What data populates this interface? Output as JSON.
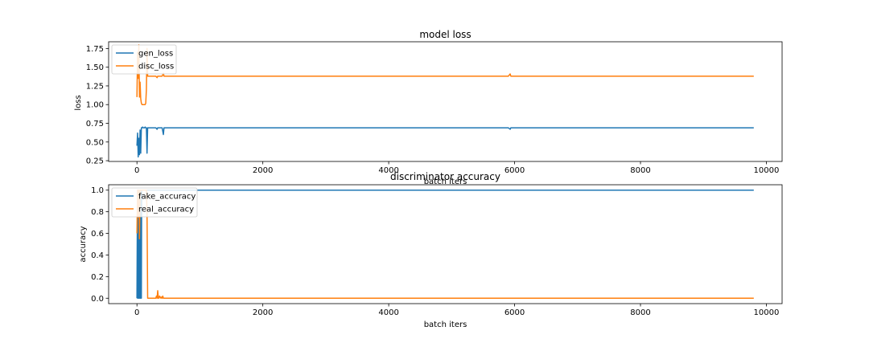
{
  "chart_data": [
    {
      "type": "line",
      "title": "model loss",
      "xlabel": "batch iters",
      "ylabel": "loss",
      "xlim": [
        -450,
        10250
      ],
      "ylim": [
        0.24,
        1.84
      ],
      "xticks": [
        0,
        2000,
        4000,
        6000,
        8000,
        10000
      ],
      "yticks": [
        0.25,
        0.5,
        0.75,
        1.0,
        1.25,
        1.5,
        1.75
      ],
      "ytick_labels": [
        "0.25",
        "0.50",
        "0.75",
        "1.00",
        "1.25",
        "1.50",
        "1.75"
      ],
      "grid": false,
      "legend": "top-left",
      "series": [
        {
          "name": "gen_loss",
          "color": "#1f77b4",
          "x": [
            0,
            10,
            20,
            30,
            40,
            50,
            60,
            70,
            80,
            90,
            100,
            110,
            120,
            130,
            140,
            150,
            160,
            170,
            180,
            190,
            200,
            300,
            320,
            330,
            400,
            420,
            430,
            440,
            1000,
            3000,
            5900,
            5930,
            5940,
            5950,
            7000,
            9800
          ],
          "y": [
            0.45,
            0.62,
            0.3,
            0.55,
            0.33,
            0.66,
            0.35,
            0.69,
            0.69,
            0.7,
            0.69,
            0.69,
            0.69,
            0.7,
            0.69,
            0.69,
            0.35,
            0.69,
            0.69,
            0.69,
            0.69,
            0.69,
            0.67,
            0.69,
            0.69,
            0.6,
            0.69,
            0.69,
            0.69,
            0.69,
            0.69,
            0.67,
            0.69,
            0.69,
            0.69,
            0.69
          ]
        },
        {
          "name": "disc_loss",
          "color": "#ff7f0e",
          "x": [
            0,
            10,
            20,
            30,
            40,
            50,
            60,
            70,
            80,
            90,
            100,
            110,
            120,
            130,
            140,
            150,
            160,
            170,
            180,
            190,
            200,
            300,
            320,
            330,
            400,
            420,
            430,
            440,
            1000,
            3000,
            5900,
            5930,
            5940,
            5950,
            7000,
            9800
          ],
          "y": [
            1.1,
            1.7,
            1.35,
            1.8,
            1.1,
            1.3,
            1.08,
            1.02,
            1.0,
            1.0,
            1.0,
            1.0,
            1.0,
            1.0,
            1.02,
            1.2,
            1.75,
            1.38,
            1.38,
            1.38,
            1.38,
            1.38,
            1.36,
            1.38,
            1.38,
            1.42,
            1.38,
            1.38,
            1.38,
            1.38,
            1.38,
            1.41,
            1.38,
            1.38,
            1.38,
            1.38
          ]
        }
      ]
    },
    {
      "type": "line",
      "title": "discriminator accuracy",
      "xlabel": "batch iters",
      "ylabel": "accuracy",
      "xlim": [
        -450,
        10250
      ],
      "ylim": [
        -0.05,
        1.05
      ],
      "xticks": [
        0,
        2000,
        4000,
        6000,
        8000,
        10000
      ],
      "yticks": [
        0.0,
        0.2,
        0.4,
        0.6,
        0.8,
        1.0
      ],
      "ytick_labels": [
        "0.0",
        "0.2",
        "0.4",
        "0.6",
        "0.8",
        "1.0"
      ],
      "grid": false,
      "legend": "top-left",
      "series": [
        {
          "name": "fake_accuracy",
          "color": "#1f77b4",
          "x": [
            0,
            5,
            10,
            15,
            20,
            25,
            30,
            35,
            40,
            45,
            50,
            55,
            60,
            65,
            70,
            75,
            80,
            90,
            100,
            110,
            120,
            130,
            140,
            150,
            160,
            170,
            180,
            200,
            1000,
            5000,
            9800
          ],
          "y": [
            0.0,
            0.6,
            0.0,
            1.0,
            0.0,
            0.8,
            0.0,
            1.0,
            0.0,
            0.5,
            0.0,
            1.0,
            0.0,
            1.0,
            0.0,
            1.0,
            1.0,
            1.0,
            1.0,
            1.0,
            1.0,
            1.0,
            1.0,
            1.0,
            1.0,
            1.0,
            1.0,
            1.0,
            1.0,
            1.0,
            1.0
          ]
        },
        {
          "name": "real_accuracy",
          "color": "#ff7f0e",
          "x": [
            0,
            10,
            20,
            30,
            40,
            50,
            60,
            70,
            80,
            90,
            100,
            110,
            120,
            130,
            140,
            150,
            160,
            170,
            180,
            190,
            200,
            300,
            310,
            320,
            330,
            340,
            350,
            360,
            380,
            390,
            400,
            410,
            420,
            1000,
            5000,
            9800
          ],
          "y": [
            0.6,
            1.0,
            0.75,
            1.0,
            0.55,
            1.0,
            1.0,
            1.0,
            1.0,
            1.0,
            1.0,
            1.0,
            1.0,
            1.0,
            1.0,
            1.0,
            0.8,
            0.0,
            0.0,
            0.0,
            0.0,
            0.0,
            0.02,
            0.0,
            0.07,
            0.0,
            0.0,
            0.02,
            0.0,
            0.01,
            0.0,
            0.02,
            0.0,
            0.0,
            0.0,
            0.0
          ]
        }
      ]
    }
  ]
}
